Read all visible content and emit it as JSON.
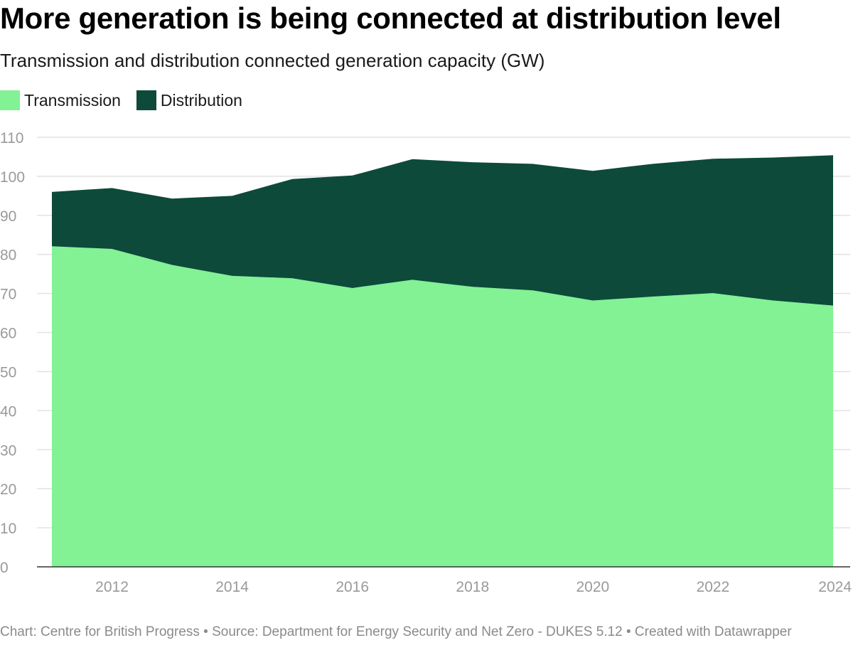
{
  "header": {
    "title": "More generation is being connected at distribution level",
    "subtitle": "Transmission and distribution connected generation capacity (GW)"
  },
  "legend": {
    "transmission_label": "Transmission",
    "distribution_label": "Distribution"
  },
  "colors": {
    "transmission": "#82f295",
    "distribution": "#0d4a3a",
    "grid": "#e2e2e2",
    "axis": "#333333"
  },
  "chart_data": {
    "type": "area",
    "stacked": true,
    "title": "More generation is being connected at distribution level",
    "ylabel": "Transmission and distribution connected generation capacity (GW)",
    "xlabel": "",
    "ylim": [
      0,
      110
    ],
    "xlim": [
      2011,
      2024
    ],
    "grid": true,
    "legend": "top-left",
    "x": [
      2011,
      2012,
      2013,
      2014,
      2015,
      2016,
      2017,
      2018,
      2019,
      2020,
      2021,
      2022,
      2023,
      2024
    ],
    "series": [
      {
        "name": "Transmission",
        "values": [
          82.1,
          81.4,
          77.3,
          74.5,
          73.9,
          71.4,
          73.5,
          71.7,
          70.8,
          68.2,
          69.2,
          70.1,
          68.2,
          66.9
        ]
      },
      {
        "name": "Distribution",
        "values": [
          13.9,
          15.6,
          17.0,
          20.5,
          25.4,
          28.8,
          30.9,
          31.9,
          32.4,
          33.2,
          34.0,
          34.4,
          36.6,
          38.5
        ]
      }
    ],
    "y_ticks": [
      "0",
      "10",
      "20",
      "30",
      "40",
      "50",
      "60",
      "70",
      "80",
      "90",
      "100",
      "110"
    ],
    "x_ticks": [
      "2012",
      "2014",
      "2016",
      "2018",
      "2020",
      "2022",
      "2024"
    ]
  },
  "footer": {
    "text": "Chart: Centre for British Progress • Source: Department for Energy Security and Net Zero - DUKES 5.12 • Created with Datawrapper"
  }
}
